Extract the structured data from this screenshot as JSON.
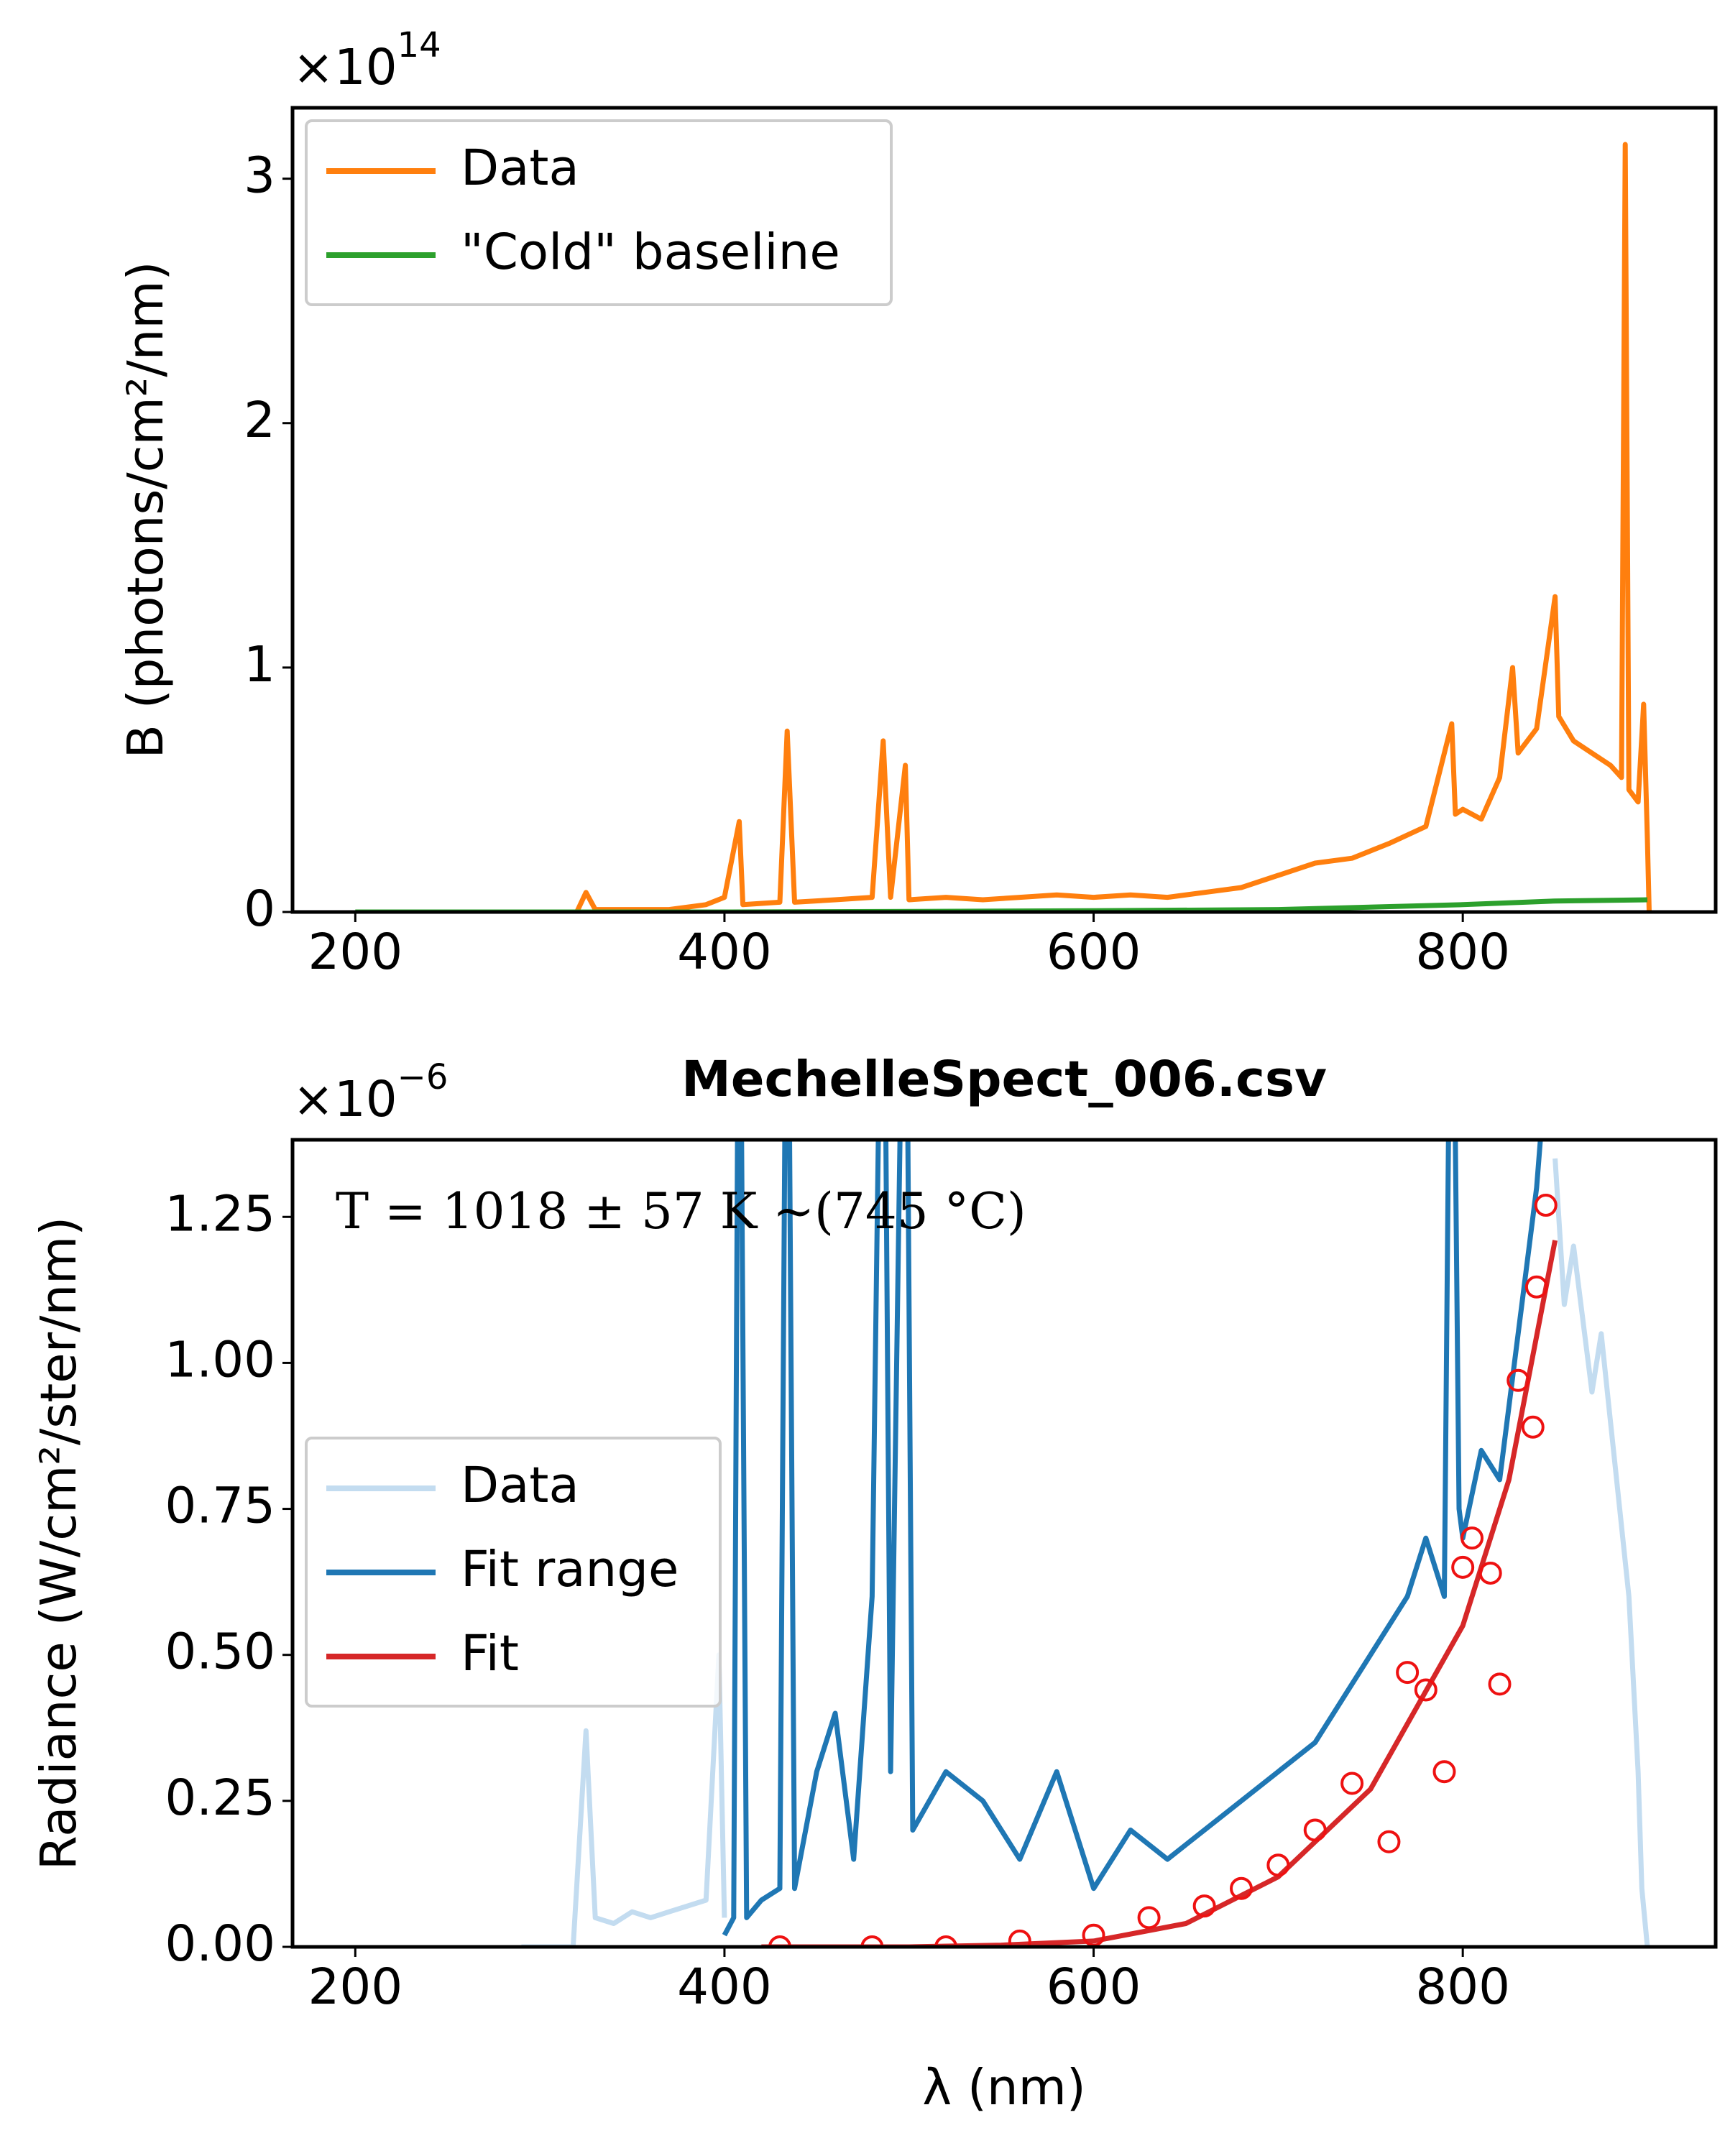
{
  "chart_data": [
    {
      "type": "line",
      "offset": "×10",
      "offset_power": "14",
      "y_label": "B (photons/cm²/nm)",
      "xlim": [
        166,
        937
      ],
      "xticks": [
        200,
        400,
        600,
        800
      ],
      "ylim": [
        0,
        3.29
      ],
      "yticks": [
        0,
        1,
        2,
        3
      ],
      "legend": "upper left",
      "series": [
        {
          "name": "Data",
          "color": "#ff7f0e",
          "x": [
            320,
            325,
            330,
            350,
            370,
            390,
            400,
            408,
            410,
            430,
            434,
            438,
            460,
            480,
            486,
            490,
            498,
            500,
            520,
            540,
            560,
            580,
            600,
            620,
            640,
            660,
            680,
            700,
            720,
            740,
            760,
            780,
            794,
            796,
            800,
            810,
            820,
            827,
            830,
            840,
            850,
            852,
            860,
            870,
            880,
            886,
            888,
            890,
            895,
            898,
            900,
            901
          ],
          "values": [
            0,
            0.08,
            0.01,
            0.01,
            0.01,
            0.03,
            0.06,
            0.37,
            0.03,
            0.04,
            0.74,
            0.04,
            0.05,
            0.06,
            0.7,
            0.06,
            0.6,
            0.05,
            0.06,
            0.05,
            0.06,
            0.07,
            0.06,
            0.07,
            0.06,
            0.08,
            0.1,
            0.15,
            0.2,
            0.22,
            0.28,
            0.35,
            0.77,
            0.4,
            0.42,
            0.38,
            0.55,
            1.0,
            0.65,
            0.75,
            1.29,
            0.8,
            0.7,
            0.65,
            0.6,
            0.55,
            3.14,
            0.5,
            0.45,
            0.85,
            0.3,
            0
          ]
        },
        {
          "name": "\"Cold\" baseline",
          "color": "#2ca02c",
          "x": [
            200,
            300,
            400,
            500,
            600,
            700,
            800,
            850,
            900
          ],
          "values": [
            0,
            0,
            0,
            0.002,
            0.005,
            0.01,
            0.03,
            0.045,
            0.05
          ]
        }
      ]
    },
    {
      "type": "line",
      "title": "MechelleSpect_006.csv",
      "offset": "×10",
      "offset_power": "−6",
      "x_label": "λ (nm)",
      "y_label": "Radiance (W/cm²/ster/nm)",
      "annotation": "T = 1018 ± 57 K ~(745 °C)",
      "annotation_color": "#ee1111",
      "xlim": [
        166,
        937
      ],
      "xticks": [
        200,
        400,
        600,
        800
      ],
      "ylim": [
        0,
        1.382
      ],
      "yticks": [
        {
          "value": 0,
          "label": "0.00"
        },
        {
          "value": 0.25,
          "label": "0.25"
        },
        {
          "value": 0.5,
          "label": "0.50"
        },
        {
          "value": 0.75,
          "label": "0.75"
        },
        {
          "value": 1,
          "label": "1.00"
        },
        {
          "value": 1.25,
          "label": "1.25"
        }
      ],
      "legend": "center left",
      "series": [
        {
          "name": "Data",
          "color": "#c3dcf0",
          "x": [
            290,
            300,
            318,
            325,
            330,
            340,
            350,
            360,
            370,
            380,
            390,
            397,
            400,
            625,
            850,
            855,
            860,
            870,
            875,
            880,
            885,
            890,
            895,
            897,
            900
          ],
          "values": [
            0,
            0,
            0,
            0.37,
            0.05,
            0.04,
            0.06,
            0.05,
            0.06,
            0.07,
            0.08,
            0.5,
            0.05,
            null,
            1.35,
            1.1,
            1.2,
            0.95,
            1.05,
            0.9,
            0.75,
            0.6,
            0.3,
            0.1,
            0
          ]
        },
        {
          "name": "Fit range",
          "color": "#1f77b4",
          "x": [
            400,
            405,
            408,
            412,
            420,
            430,
            434,
            438,
            450,
            460,
            470,
            480,
            486,
            490,
            498,
            502,
            520,
            540,
            560,
            580,
            600,
            620,
            640,
            660,
            680,
            700,
            720,
            740,
            760,
            770,
            780,
            790,
            794,
            798,
            800,
            810,
            820,
            830,
            840,
            845,
            850
          ],
          "values": [
            0.02,
            0.05,
            2,
            0.05,
            0.08,
            0.1,
            2,
            0.1,
            0.3,
            0.4,
            0.15,
            0.6,
            2,
            0.3,
            2,
            0.2,
            0.3,
            0.25,
            0.15,
            0.3,
            0.1,
            0.2,
            0.15,
            0.2,
            0.25,
            0.3,
            0.35,
            0.45,
            0.55,
            0.6,
            0.7,
            0.6,
            2,
            0.75,
            0.7,
            0.85,
            0.8,
            1.05,
            1.3,
            1.5,
            1.5
          ]
        },
        {
          "name": "Fit",
          "color": "#d62728",
          "x": [
            420,
            500,
            550,
            600,
            650,
            700,
            750,
            800,
            825,
            850
          ],
          "values": [
            0,
            0,
            0.003,
            0.01,
            0.04,
            0.12,
            0.27,
            0.55,
            0.8,
            1.21
          ]
        }
      ],
      "markers": {
        "color": "#ee1111",
        "x": [
          430,
          480,
          520,
          560,
          600,
          630,
          660,
          680,
          700,
          720,
          740,
          760,
          770,
          780,
          790,
          800,
          805,
          815,
          820,
          830,
          838,
          840,
          845
        ],
        "values": [
          0,
          0,
          0,
          0.01,
          0.02,
          0.05,
          0.07,
          0.1,
          0.14,
          0.2,
          0.28,
          0.18,
          0.47,
          0.44,
          0.3,
          0.65,
          0.7,
          0.64,
          0.45,
          0.97,
          0.89,
          1.13,
          1.27
        ]
      }
    }
  ]
}
